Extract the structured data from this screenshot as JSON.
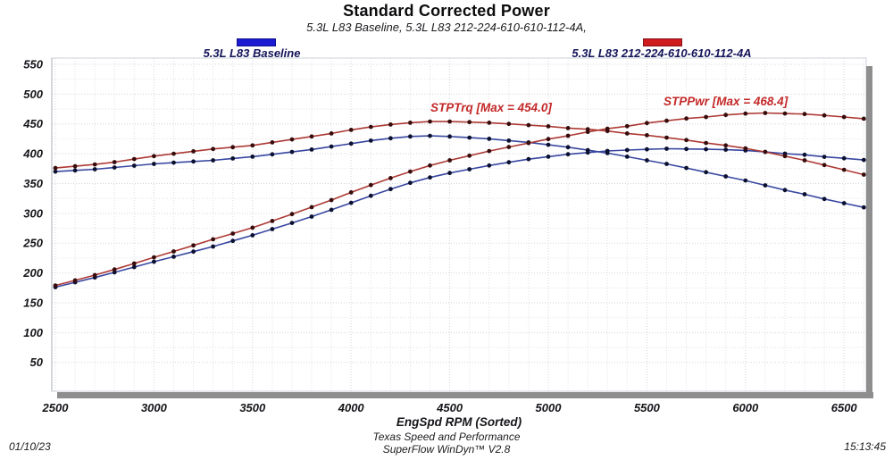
{
  "header": {
    "title": "Standard Corrected Power",
    "subtitle": "5.3L L83 Baseline, 5.3L L83 212-224-610-610-112-4A,"
  },
  "legend": [
    {
      "label": "5.3L L83 Baseline",
      "color": "#1b1bd2"
    },
    {
      "label": "5.3L L83 212-224-610-610-112-4A",
      "color": "#cf1b1e"
    }
  ],
  "annotations": [
    {
      "text": "STPTrq [Max = 454.0]",
      "color": "#c42828"
    },
    {
      "text": "STPPwr [Max = 468.4]",
      "color": "#c42828"
    }
  ],
  "footer": {
    "date": "01/10/23",
    "facility": "Texas Speed and Performance",
    "software": "SuperFlow WinDyn™ V2.8",
    "time": "15:13:45"
  },
  "chart_data": {
    "type": "line",
    "title": "Standard Corrected Power",
    "xlabel": "EngSpd  RPM   (Sorted)",
    "ylabel": "",
    "xlim": [
      2480,
      6615
    ],
    "ylim": [
      0,
      560
    ],
    "grid": true,
    "x_ticks": [
      2500,
      3000,
      3500,
      4000,
      4500,
      5000,
      5500,
      6000,
      6500
    ],
    "y_ticks": [
      50,
      100,
      150,
      200,
      250,
      300,
      350,
      400,
      450,
      500,
      550
    ],
    "x": [
      2500,
      2600,
      2700,
      2800,
      2900,
      3000,
      3100,
      3200,
      3300,
      3400,
      3500,
      3600,
      3700,
      3800,
      3900,
      4000,
      4100,
      4200,
      4300,
      4400,
      4500,
      4600,
      4700,
      4800,
      4900,
      5000,
      5100,
      5200,
      5300,
      5400,
      5500,
      5600,
      5700,
      5800,
      5900,
      6000,
      6100,
      6200,
      6300,
      6400,
      6500,
      6600
    ],
    "series": [
      {
        "name": "STPTrq - 5.3L L83 Baseline",
        "line_color": "#3847a0",
        "marker_color": "#0c1030",
        "max": 430.0,
        "values": [
          370,
          372,
          374,
          377,
          380,
          383,
          385,
          387,
          389,
          392,
          395,
          399,
          403,
          407,
          412,
          417,
          422,
          426,
          429,
          430,
          429,
          427,
          425,
          422,
          419,
          415,
          411,
          406,
          401,
          395,
          389,
          383,
          376,
          369,
          362,
          355,
          347,
          339,
          332,
          324,
          317,
          310
        ]
      },
      {
        "name": "STPPwr - 5.3L L83 Baseline",
        "line_color": "#3847a0",
        "marker_color": "#0c1030",
        "max": 408.4,
        "values": [
          176.1,
          184.2,
          192.3,
          201.0,
          209.8,
          218.8,
          227.2,
          235.8,
          244.4,
          253.8,
          263.2,
          273.5,
          283.9,
          294.5,
          305.9,
          317.6,
          329.4,
          340.7,
          351.2,
          360.2,
          367.6,
          374.0,
          380.3,
          385.7,
          390.9,
          395.1,
          399.1,
          402.0,
          404.7,
          406.1,
          407.3,
          408.4,
          408.0,
          407.5,
          406.7,
          405.6,
          403.0,
          400.2,
          398.2,
          394.8,
          392.3,
          389.6
        ]
      },
      {
        "name": "STPTrq - 5.3L L83 212-224-610-610-112-4A",
        "line_color": "#ad3a35",
        "marker_color": "#380c0c",
        "max": 454.0,
        "values": [
          376,
          379,
          382,
          386,
          391,
          396,
          400,
          404,
          408,
          411,
          414,
          419,
          424,
          429,
          434,
          440,
          445,
          449,
          452,
          454,
          454,
          453,
          452,
          450,
          448,
          446,
          443,
          441,
          438,
          434,
          431,
          427,
          423,
          418,
          414,
          409,
          403,
          396,
          389,
          381,
          373,
          365
        ]
      },
      {
        "name": "STPPwr - 5.3L L83 212-224-610-610-112-4A",
        "line_color": "#ad3a35",
        "marker_color": "#380c0c",
        "max": 468.4,
        "values": [
          179.0,
          187.6,
          196.4,
          205.8,
          215.9,
          226.2,
          236.1,
          246.2,
          256.4,
          266.1,
          275.9,
          287.2,
          298.7,
          310.4,
          322.3,
          335.1,
          347.4,
          359.1,
          370.0,
          380.3,
          389.0,
          396.7,
          404.5,
          411.3,
          417.9,
          424.6,
          430.2,
          436.6,
          442.0,
          446.2,
          451.4,
          455.3,
          459.1,
          461.6,
          465.1,
          467.3,
          468.4,
          467.5,
          466.6,
          464.3,
          461.6,
          458.7
        ]
      }
    ],
    "legend_position": "top"
  }
}
